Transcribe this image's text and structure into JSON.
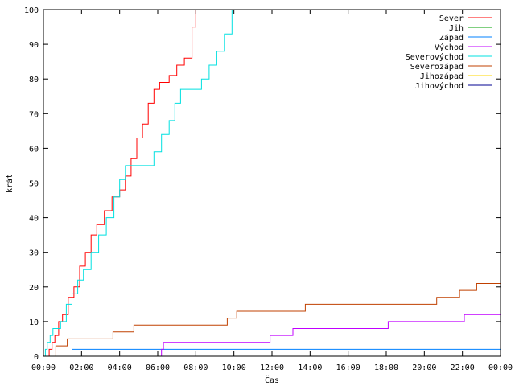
{
  "chart_data": {
    "type": "line",
    "title": "",
    "xlabel": "Čas",
    "ylabel": "krát",
    "xlim": [
      0,
      24
    ],
    "ylim": [
      0,
      100
    ],
    "x_ticks": [
      0,
      2,
      4,
      6,
      8,
      10,
      12,
      14,
      16,
      18,
      20,
      22,
      24
    ],
    "x_tick_labels": [
      "00:00",
      "02:00",
      "04:00",
      "06:00",
      "08:00",
      "10:00",
      "12:00",
      "14:00",
      "16:00",
      "18:00",
      "20:00",
      "22:00",
      "00:00"
    ],
    "y_ticks": [
      0,
      10,
      20,
      30,
      40,
      50,
      60,
      70,
      80,
      90,
      100
    ],
    "y_tick_labels": [
      "0",
      "10",
      "20",
      "30",
      "40",
      "50",
      "60",
      "70",
      "80",
      "90",
      "100"
    ],
    "legend_position": "top-right",
    "grid": false,
    "series": [
      {
        "name": "Sever",
        "color": "#ff0000",
        "points": [
          [
            0,
            0
          ],
          [
            0.2,
            0
          ],
          [
            0.3,
            2
          ],
          [
            0.45,
            4
          ],
          [
            0.6,
            6
          ],
          [
            0.8,
            10
          ],
          [
            1.0,
            12
          ],
          [
            1.3,
            17
          ],
          [
            1.6,
            20
          ],
          [
            1.9,
            26
          ],
          [
            2.2,
            30
          ],
          [
            2.5,
            35
          ],
          [
            2.8,
            38
          ],
          [
            3.2,
            42
          ],
          [
            3.6,
            46
          ],
          [
            4.0,
            48
          ],
          [
            4.3,
            52
          ],
          [
            4.6,
            57
          ],
          [
            4.9,
            63
          ],
          [
            5.2,
            67
          ],
          [
            5.5,
            73
          ],
          [
            5.8,
            77
          ],
          [
            6.1,
            79
          ],
          [
            6.5,
            79
          ],
          [
            6.6,
            81
          ],
          [
            7.0,
            84
          ],
          [
            7.4,
            86
          ],
          [
            7.8,
            95
          ],
          [
            8.0,
            100
          ]
        ]
      },
      {
        "name": "Jih",
        "color": "#00a000",
        "points": []
      },
      {
        "name": "Západ",
        "color": "#0080ff",
        "points": [
          [
            0,
            0
          ],
          [
            1.45,
            0
          ],
          [
            1.5,
            2
          ],
          [
            24,
            2
          ]
        ]
      },
      {
        "name": "Východ",
        "color": "#c000ff",
        "points": [
          [
            0,
            0
          ],
          [
            6.15,
            0
          ],
          [
            6.2,
            2
          ],
          [
            6.3,
            4
          ],
          [
            11.8,
            4
          ],
          [
            11.9,
            6
          ],
          [
            13.0,
            6
          ],
          [
            13.1,
            8
          ],
          [
            18.0,
            8
          ],
          [
            18.1,
            10
          ],
          [
            22.0,
            10
          ],
          [
            22.1,
            12
          ],
          [
            24,
            12
          ]
        ]
      },
      {
        "name": "Severovýchod",
        "color": "#00e0e0",
        "points": [
          [
            0,
            0
          ],
          [
            0.1,
            2
          ],
          [
            0.2,
            4
          ],
          [
            0.35,
            6
          ],
          [
            0.5,
            8
          ],
          [
            0.9,
            10
          ],
          [
            1.2,
            15
          ],
          [
            1.5,
            18
          ],
          [
            1.8,
            22
          ],
          [
            2.1,
            25
          ],
          [
            2.5,
            30
          ],
          [
            2.9,
            35
          ],
          [
            3.3,
            40
          ],
          [
            3.7,
            46
          ],
          [
            4.0,
            51
          ],
          [
            4.3,
            55
          ],
          [
            4.6,
            55
          ],
          [
            5.6,
            55
          ],
          [
            5.8,
            59
          ],
          [
            6.2,
            64
          ],
          [
            6.6,
            68
          ],
          [
            6.9,
            73
          ],
          [
            7.2,
            77
          ],
          [
            8.0,
            77
          ],
          [
            8.3,
            80
          ],
          [
            8.7,
            84
          ],
          [
            9.1,
            88
          ],
          [
            9.5,
            93
          ],
          [
            9.9,
            100
          ]
        ]
      },
      {
        "name": "Severozápad",
        "color": "#c04000",
        "points": [
          [
            0,
            0
          ],
          [
            0.6,
            0
          ],
          [
            0.65,
            3
          ],
          [
            1.2,
            3
          ],
          [
            1.25,
            5
          ],
          [
            3.6,
            5
          ],
          [
            3.65,
            7
          ],
          [
            4.7,
            7
          ],
          [
            4.75,
            9
          ],
          [
            9.6,
            9
          ],
          [
            9.65,
            11
          ],
          [
            10.1,
            11
          ],
          [
            10.15,
            13
          ],
          [
            13.7,
            13
          ],
          [
            13.75,
            15
          ],
          [
            20.6,
            15
          ],
          [
            20.65,
            17
          ],
          [
            21.8,
            17
          ],
          [
            21.85,
            19
          ],
          [
            22.7,
            19
          ],
          [
            22.75,
            21
          ],
          [
            24,
            21
          ]
        ]
      },
      {
        "name": "Jihozápad",
        "color": "#ffd700",
        "points": []
      },
      {
        "name": "Jihovýchod",
        "color": "#000090",
        "points": []
      }
    ]
  }
}
